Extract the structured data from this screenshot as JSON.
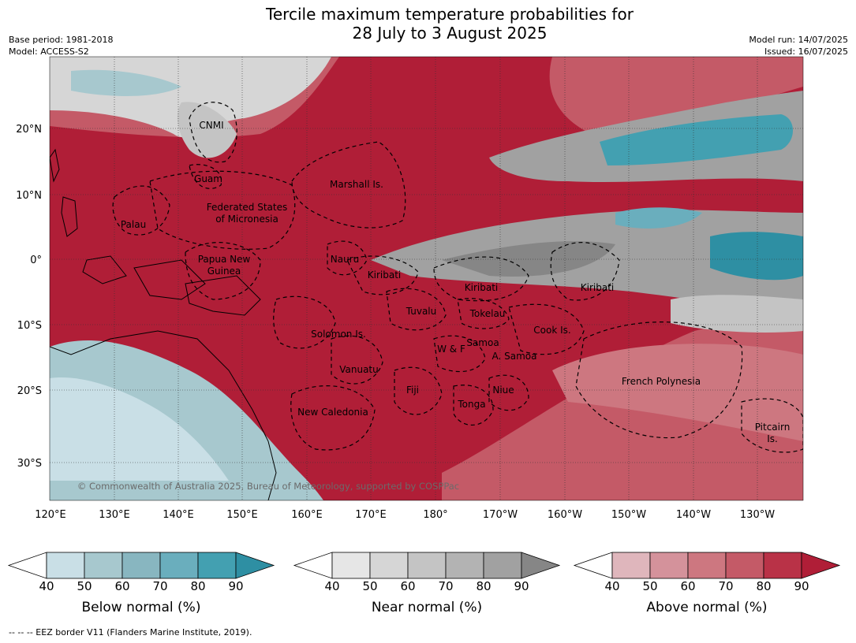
{
  "header": {
    "title_line1": "Tercile maximum temperature probabilities for",
    "title_line2": "28 July to 3 August 2025",
    "base_period": "Base period: 1981-2018",
    "model": "Model: ACCESS-S2",
    "model_run": "Model run: 14/07/2025",
    "issued": "Issued: 16/07/2025"
  },
  "map": {
    "lat_labels": [
      "20°N",
      "10°N",
      "0°",
      "10°S",
      "20°S",
      "30°S"
    ],
    "lon_labels": [
      "120°E",
      "130°E",
      "140°E",
      "150°E",
      "160°E",
      "170°E",
      "180°",
      "170°W",
      "160°W",
      "150°W",
      "140°W",
      "130°W"
    ],
    "regions": [
      "CNMI",
      "Guam",
      "Marshall Is.",
      "Federated States",
      "of Micronesia",
      "Palau",
      "Papua New",
      "Guinea",
      "Nauru",
      "Kiribati",
      "Kiribati",
      "Kiribati",
      "Tuvalu",
      "Tokelau",
      "Cook Is.",
      "Solomon Is.",
      "W & F",
      "Samoa",
      "A. Samoa",
      "Vanuatu",
      "Fiji",
      "Niue",
      "Tonga",
      "French Polynesia",
      "New Caledonia",
      "Pitcairn",
      "Is."
    ],
    "copyright": "© Commonwealth of Australia 2025, Bureau of Meteorology, supported by COSPPac"
  },
  "colorbars": [
    {
      "label": "Below normal (%)",
      "ticks": [
        "40",
        "50",
        "60",
        "70",
        "80",
        "90"
      ],
      "colors": [
        "#ffffff",
        "#c9dfe6",
        "#a7c8ce",
        "#88b6c0",
        "#6aaebd",
        "#43a0b1",
        "#2e8fa3"
      ]
    },
    {
      "label": "Near normal (%)",
      "ticks": [
        "40",
        "50",
        "60",
        "70",
        "80",
        "90"
      ],
      "colors": [
        "#ffffff",
        "#e6e6e6",
        "#d6d6d6",
        "#c4c4c4",
        "#b3b3b3",
        "#a1a1a1",
        "#868686"
      ]
    },
    {
      "label": "Above normal (%)",
      "ticks": [
        "40",
        "50",
        "60",
        "70",
        "80",
        "90"
      ],
      "colors": [
        "#ffffff",
        "#dfb6bc",
        "#d4929b",
        "#cd7780",
        "#c45a67",
        "#b93247",
        "#b01e37"
      ]
    }
  ],
  "footer": "--  --  -- EEZ border V11 (Flanders Marine Institute, 2019)."
}
